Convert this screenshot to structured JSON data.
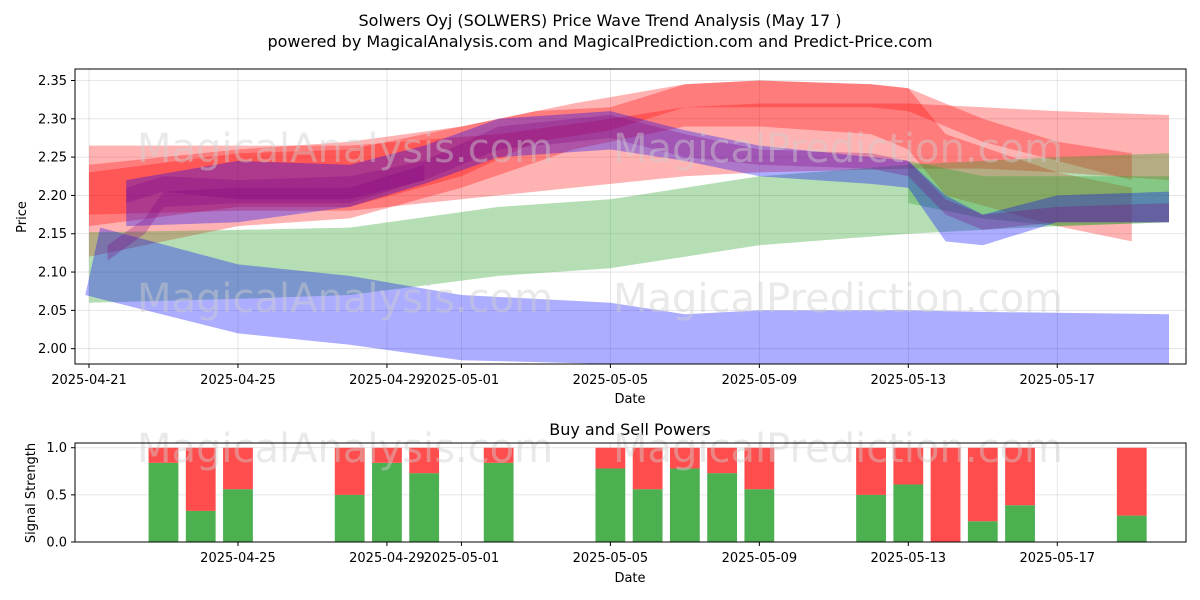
{
  "title_line1": "Solwers Oyj (SOLWERS) Price Wave Trend Analysis (May 17 )",
  "title_line2": "powered by MagicalAnalysis.com and MagicalPrediction.com and Predict-Price.com",
  "watermarks": [
    "MagicalAnalysis.com",
    "MagicalPrediction.com"
  ],
  "colors": {
    "red": "#ff0000",
    "green": "#2ca02c",
    "blue": "#0000ff",
    "purple": "#800080",
    "buy": "#4caf50",
    "sell": "#ff4c4c"
  },
  "chart_data": [
    {
      "type": "area",
      "xlabel": "Date",
      "ylabel": "Price",
      "xlim": [
        "2025-04-21",
        "2025-05-20"
      ],
      "ylim": [
        1.98,
        2.365
      ],
      "yticks": [
        2.0,
        2.05,
        2.1,
        2.15,
        2.2,
        2.25,
        2.3,
        2.35
      ],
      "xticks": [
        "2025-04-21",
        "2025-04-25",
        "2025-04-29",
        "2025-05-01",
        "2025-05-05",
        "2025-05-09",
        "2025-05-13",
        "2025-05-17"
      ],
      "grid": true,
      "series": [
        {
          "color": "red",
          "x": [
            "2025-04-21",
            "2025-04-25",
            "2025-04-28",
            "2025-05-02",
            "2025-05-05",
            "2025-05-07",
            "2025-05-09",
            "2025-05-13",
            "2025-05-15",
            "2025-05-17",
            "2025-05-20"
          ],
          "upper": [
            2.265,
            2.265,
            2.265,
            2.28,
            2.3,
            2.315,
            2.32,
            2.32,
            2.315,
            2.31,
            2.305
          ],
          "lower": [
            2.175,
            2.18,
            2.18,
            2.2,
            2.215,
            2.225,
            2.23,
            2.235,
            2.235,
            2.23,
            2.22
          ]
        },
        {
          "color": "red",
          "x": [
            "2025-04-21",
            "2025-04-25",
            "2025-04-28",
            "2025-05-01",
            "2025-05-03",
            "2025-05-05",
            "2025-05-07",
            "2025-05-09",
            "2025-05-12",
            "2025-05-13",
            "2025-05-15",
            "2025-05-17",
            "2025-05-19"
          ],
          "upper": [
            2.23,
            2.255,
            2.26,
            2.29,
            2.31,
            2.315,
            2.345,
            2.35,
            2.345,
            2.34,
            2.3,
            2.27,
            2.255
          ],
          "lower": [
            2.16,
            2.185,
            2.185,
            2.225,
            2.27,
            2.285,
            2.315,
            2.315,
            2.315,
            2.31,
            2.27,
            2.245,
            2.22
          ]
        },
        {
          "color": "red",
          "x": [
            "2025-04-21",
            "2025-04-25",
            "2025-04-28",
            "2025-05-01",
            "2025-05-04",
            "2025-05-07",
            "2025-05-09",
            "2025-05-12",
            "2025-05-13",
            "2025-05-14",
            "2025-05-17",
            "2025-05-19"
          ],
          "upper": [
            2.24,
            2.26,
            2.27,
            2.29,
            2.32,
            2.345,
            2.35,
            2.345,
            2.34,
            2.28,
            2.23,
            2.21
          ],
          "lower": [
            2.12,
            2.16,
            2.17,
            2.21,
            2.26,
            2.29,
            2.29,
            2.28,
            2.26,
            2.2,
            2.16,
            2.14
          ]
        },
        {
          "color": "green",
          "x": [
            "2025-04-21",
            "2025-04-25",
            "2025-04-28",
            "2025-05-02",
            "2025-05-05",
            "2025-05-07",
            "2025-05-09",
            "2025-05-13",
            "2025-05-15",
            "2025-05-17",
            "2025-05-20"
          ],
          "upper": [
            2.152,
            2.155,
            2.158,
            2.185,
            2.195,
            2.21,
            2.225,
            2.24,
            2.245,
            2.25,
            2.255
          ],
          "lower": [
            2.06,
            2.065,
            2.07,
            2.095,
            2.105,
            2.12,
            2.135,
            2.15,
            2.155,
            2.16,
            2.165
          ]
        },
        {
          "color": "green",
          "x": [
            "2025-05-13",
            "2025-05-15",
            "2025-05-17",
            "2025-05-20"
          ],
          "upper": [
            2.245,
            2.225,
            2.225,
            2.225
          ],
          "lower": [
            2.19,
            2.17,
            2.16,
            2.165
          ]
        },
        {
          "color": "blue",
          "x": [
            "2025-04-20.9",
            "2025-04-21.3",
            "2025-04-25",
            "2025-04-28",
            "2025-05-01",
            "2025-05-05",
            "2025-05-07",
            "2025-05-09",
            "2025-05-13",
            "2025-05-15",
            "2025-05-20"
          ],
          "upper": [
            2.07,
            2.158,
            2.11,
            2.095,
            2.07,
            2.06,
            2.045,
            2.05,
            2.05,
            2.048,
            2.045
          ],
          "lower": [
            2.07,
            2.065,
            2.02,
            2.005,
            1.985,
            1.98,
            1.98,
            1.98,
            1.98,
            1.98,
            1.98
          ]
        },
        {
          "color": "blue",
          "x": [
            "2025-04-22",
            "2025-04-25",
            "2025-04-28",
            "2025-04-30",
            "2025-05-02",
            "2025-05-05",
            "2025-05-07",
            "2025-05-09",
            "2025-05-12",
            "2025-05-13",
            "2025-05-14",
            "2025-05-15",
            "2025-05-17",
            "2025-05-20"
          ],
          "upper": [
            2.22,
            2.245,
            2.24,
            2.265,
            2.3,
            2.31,
            2.285,
            2.265,
            2.25,
            2.245,
            2.2,
            2.175,
            2.2,
            2.205
          ],
          "lower": [
            2.16,
            2.165,
            2.185,
            2.215,
            2.25,
            2.26,
            2.245,
            2.225,
            2.215,
            2.21,
            2.14,
            2.135,
            2.165,
            2.165
          ]
        },
        {
          "color": "purple",
          "x": [
            "2025-04-22",
            "2025-04-23",
            "2025-04-25",
            "2025-04-28",
            "2025-04-30",
            "2025-05-02",
            "2025-05-05",
            "2025-05-07",
            "2025-05-09",
            "2025-05-12",
            "2025-05-13",
            "2025-05-14",
            "2025-05-15",
            "2025-05-17",
            "2025-05-20"
          ],
          "upper": [
            2.21,
            2.225,
            2.22,
            2.225,
            2.245,
            2.29,
            2.305,
            2.28,
            2.26,
            2.255,
            2.245,
            2.195,
            2.175,
            2.185,
            2.19
          ],
          "lower": [
            2.19,
            2.205,
            2.195,
            2.195,
            2.22,
            2.26,
            2.275,
            2.25,
            2.24,
            2.235,
            2.225,
            2.175,
            2.155,
            2.165,
            2.165
          ]
        },
        {
          "color": "purple",
          "x": [
            "2025-04-21.5",
            "2025-04-22.5",
            "2025-04-23",
            "2025-04-25",
            "2025-04-28",
            "2025-04-30"
          ],
          "upper": [
            2.135,
            2.17,
            2.205,
            2.21,
            2.21,
            2.24
          ],
          "lower": [
            2.115,
            2.15,
            2.185,
            2.19,
            2.19,
            2.22
          ]
        }
      ]
    },
    {
      "type": "bar",
      "title": "Buy and Sell Powers",
      "xlabel": "Date",
      "ylabel": "Signal Strength",
      "ylim": [
        0,
        1.05
      ],
      "yticks": [
        "0.0",
        "0.5",
        "1.0"
      ],
      "xticks": [
        "2025-04-25",
        "2025-04-29",
        "2025-05-01",
        "2025-05-05",
        "2025-05-09",
        "2025-05-13",
        "2025-05-17"
      ],
      "grid": true,
      "legend": "none",
      "categories": [
        "2025-04-23",
        "2025-04-24",
        "2025-04-25",
        "2025-04-28",
        "2025-04-29",
        "2025-04-30",
        "2025-05-02",
        "2025-05-05",
        "2025-05-06",
        "2025-05-07",
        "2025-05-08",
        "2025-05-09",
        "2025-05-12",
        "2025-05-13",
        "2025-05-14",
        "2025-05-15",
        "2025-05-16",
        "2025-05-19"
      ],
      "series": [
        {
          "name": "Buy",
          "color": "buy",
          "values": [
            0.84,
            0.33,
            0.56,
            0.5,
            0.84,
            0.73,
            0.84,
            0.78,
            0.56,
            0.78,
            0.73,
            0.56,
            0.5,
            0.61,
            0.0,
            0.22,
            0.39,
            0.28
          ]
        },
        {
          "name": "Sell",
          "color": "sell",
          "values": [
            0.16,
            0.67,
            0.44,
            0.5,
            0.16,
            0.27,
            0.16,
            0.22,
            0.44,
            0.22,
            0.27,
            0.44,
            0.5,
            0.39,
            1.0,
            0.78,
            0.61,
            0.72
          ]
        }
      ]
    }
  ]
}
